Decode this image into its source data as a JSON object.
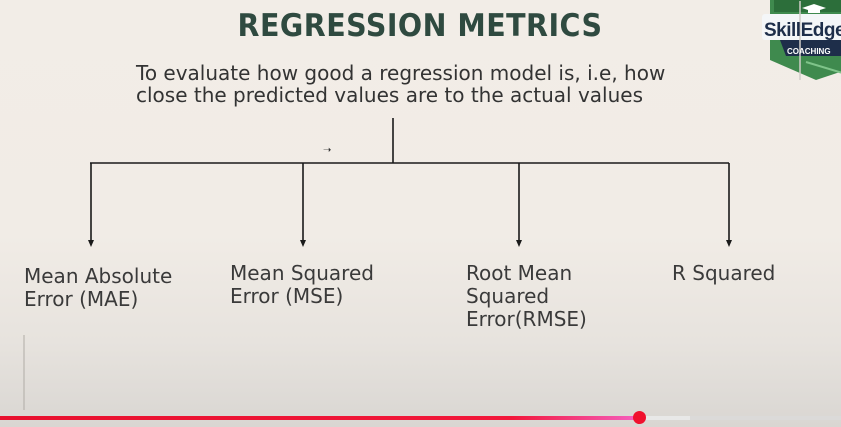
{
  "slide": {
    "title": "REGRESSION METRICS",
    "subtitle_line1": "To evaluate how good a regression model is, i.e, how",
    "subtitle_line2": "close the predicted values are to the actual values"
  },
  "metrics": [
    {
      "lines": [
        "Mean Absolute",
        "Error (MAE)"
      ]
    },
    {
      "lines": [
        "Mean Squared",
        "Error (MSE)"
      ]
    },
    {
      "lines": [
        "Root Mean",
        "Squared",
        "Error(RMSE)"
      ]
    },
    {
      "lines": [
        "R Squared"
      ]
    }
  ],
  "logo": {
    "name": "SkillEdge",
    "tagline": "COACHING"
  },
  "player": {
    "progress_fraction": 0.76,
    "buffered_fraction": 0.82
  },
  "colors": {
    "title": "#2f4a40",
    "text": "#333333",
    "lines": "#1a1a1a",
    "progress": "#f0102e",
    "logo_green": "#3f8a4e",
    "logo_navy": "#1e2e4a"
  }
}
